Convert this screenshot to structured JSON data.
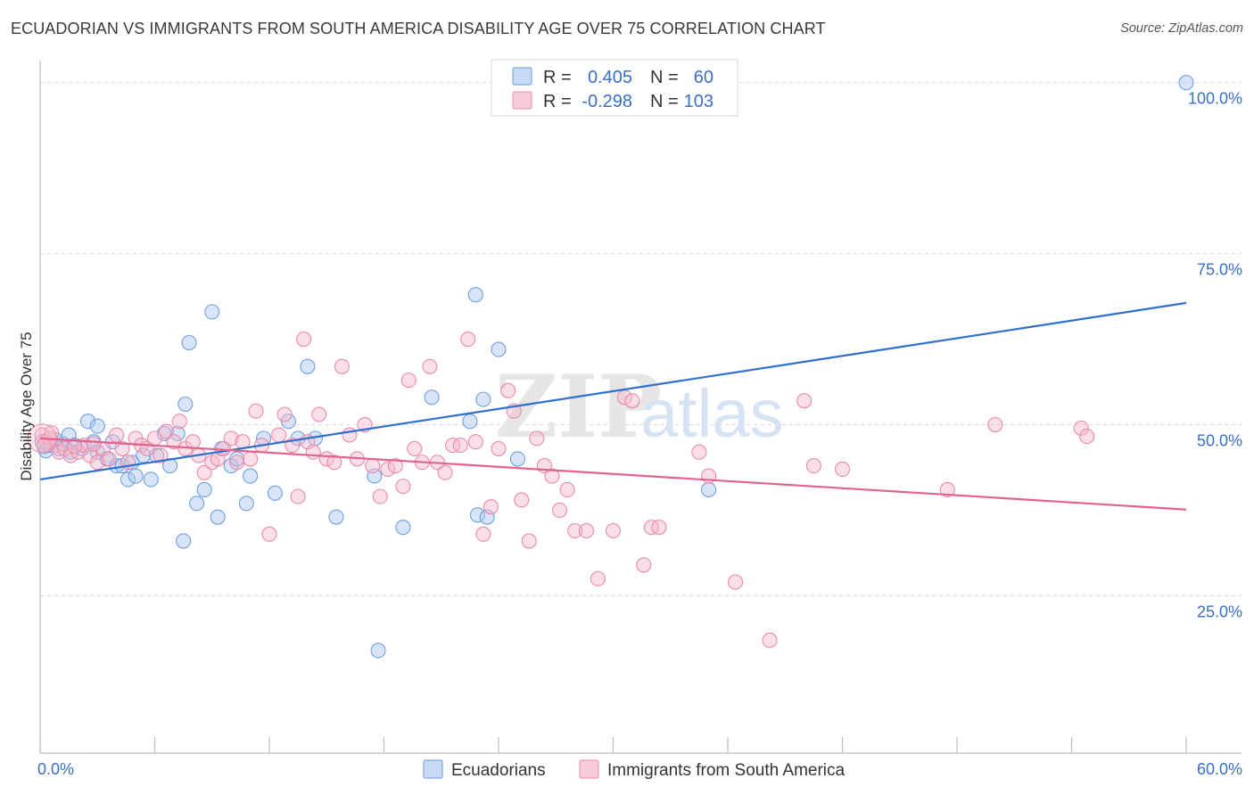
{
  "header": {
    "title": "ECUADORIAN VS IMMIGRANTS FROM SOUTH AMERICA DISABILITY AGE OVER 75 CORRELATION CHART",
    "source": "Source: ZipAtlas.com"
  },
  "watermark": {
    "part1": "ZIP",
    "part2": "atlas"
  },
  "chart_data": {
    "type": "scatter",
    "title": "ECUADORIAN VS IMMIGRANTS FROM SOUTH AMERICA DISABILITY AGE OVER 75 CORRELATION CHART",
    "xlabel": "",
    "ylabel": "Disability Age Over 75",
    "xlim": [
      0,
      60
    ],
    "ylim": [
      2,
      104
    ],
    "x_tick_labels": {
      "left": "0.0%",
      "right": "60.0%"
    },
    "y_ticks": [
      {
        "value": 25,
        "label": "25.0%"
      },
      {
        "value": 50,
        "label": "50.0%"
      },
      {
        "value": 75,
        "label": "75.0%"
      },
      {
        "value": 100,
        "label": "100.0%"
      }
    ],
    "grid": true,
    "legend_position": "top-center",
    "stats": [
      {
        "r_label": "R =",
        "r": "0.405",
        "n_label": "N =",
        "n": "60"
      },
      {
        "r_label": "R =",
        "r": "-0.298",
        "n_label": "N =",
        "n": "103"
      }
    ],
    "series": [
      {
        "name": "Ecuadorians",
        "color": "#a9c6ef",
        "stroke": "#6f9fe0",
        "trend_color": "#2f6fce",
        "trend": {
          "x0": 0,
          "y0": 42.0,
          "x1": 60,
          "y1": 67.8
        },
        "points": [
          [
            0.1,
            47.5
          ],
          [
            0.2,
            46.8
          ],
          [
            0.3,
            46.2
          ],
          [
            0.5,
            47.0
          ],
          [
            0.8,
            47.8
          ],
          [
            1.0,
            46.5
          ],
          [
            1.2,
            47.2
          ],
          [
            1.5,
            48.5
          ],
          [
            1.8,
            47.0
          ],
          [
            2.2,
            46.5
          ],
          [
            2.5,
            50.5
          ],
          [
            2.8,
            47.5
          ],
          [
            3.0,
            49.8
          ],
          [
            3.5,
            45.0
          ],
          [
            3.8,
            47.5
          ],
          [
            4.0,
            44.0
          ],
          [
            4.3,
            44.0
          ],
          [
            4.6,
            42.0
          ],
          [
            5.0,
            42.5
          ],
          [
            5.4,
            45.5
          ],
          [
            5.8,
            42.0
          ],
          [
            6.1,
            45.5
          ],
          [
            6.5,
            48.7
          ],
          [
            6.8,
            44.0
          ],
          [
            7.2,
            48.7
          ],
          [
            7.5,
            33.0
          ],
          [
            7.6,
            53.0
          ],
          [
            7.8,
            62.0
          ],
          [
            8.2,
            38.5
          ],
          [
            8.6,
            40.5
          ],
          [
            9.0,
            66.5
          ],
          [
            9.3,
            36.5
          ],
          [
            9.5,
            46.5
          ],
          [
            10.0,
            44.0
          ],
          [
            10.3,
            45.0
          ],
          [
            10.8,
            38.5
          ],
          [
            11.0,
            42.5
          ],
          [
            11.7,
            48.0
          ],
          [
            12.3,
            40.0
          ],
          [
            13.0,
            50.5
          ],
          [
            13.5,
            48.0
          ],
          [
            14.0,
            58.5
          ],
          [
            14.4,
            48.0
          ],
          [
            15.5,
            36.5
          ],
          [
            17.5,
            42.5
          ],
          [
            17.7,
            17.0
          ],
          [
            19.0,
            35.0
          ],
          [
            20.5,
            54.0
          ],
          [
            22.5,
            50.5
          ],
          [
            22.8,
            69.0
          ],
          [
            22.9,
            36.8
          ],
          [
            23.2,
            53.7
          ],
          [
            23.4,
            36.5
          ],
          [
            24.0,
            61.0
          ],
          [
            25.0,
            45.0
          ],
          [
            35.0,
            40.5
          ],
          [
            60.0,
            100.0
          ],
          [
            3.0,
            46.0
          ],
          [
            4.8,
            44.5
          ],
          [
            1.6,
            46.0
          ]
        ]
      },
      {
        "name": "Immigrants from South America",
        "color": "#f5b9cc",
        "stroke": "#ea8aa8",
        "trend_color": "#e2638f",
        "trend": {
          "x0": 0,
          "y0": 48.0,
          "x1": 60,
          "y1": 37.6
        },
        "points": [
          [
            0.1,
            48.5
          ],
          [
            0.3,
            47.5
          ],
          [
            0.5,
            48.0
          ],
          [
            0.8,
            47.0
          ],
          [
            1.0,
            46.0
          ],
          [
            1.3,
            46.5
          ],
          [
            1.6,
            45.5
          ],
          [
            2.0,
            46.0
          ],
          [
            2.3,
            47.0
          ],
          [
            2.6,
            45.5
          ],
          [
            3.0,
            44.5
          ],
          [
            3.3,
            46.5
          ],
          [
            3.6,
            45.0
          ],
          [
            4.0,
            48.5
          ],
          [
            4.3,
            46.5
          ],
          [
            4.6,
            44.5
          ],
          [
            5.0,
            48.0
          ],
          [
            5.3,
            47.0
          ],
          [
            5.6,
            46.5
          ],
          [
            6.0,
            48.0
          ],
          [
            6.3,
            45.5
          ],
          [
            6.6,
            49.0
          ],
          [
            7.0,
            47.5
          ],
          [
            7.3,
            50.5
          ],
          [
            7.6,
            46.5
          ],
          [
            8.0,
            47.5
          ],
          [
            8.3,
            45.5
          ],
          [
            8.6,
            43.0
          ],
          [
            9.0,
            44.5
          ],
          [
            9.3,
            45.0
          ],
          [
            9.6,
            46.5
          ],
          [
            10.0,
            48.0
          ],
          [
            10.3,
            44.5
          ],
          [
            10.6,
            47.5
          ],
          [
            11.0,
            45.0
          ],
          [
            11.3,
            52.0
          ],
          [
            11.6,
            47.0
          ],
          [
            12.0,
            34.0
          ],
          [
            12.5,
            48.5
          ],
          [
            12.8,
            51.5
          ],
          [
            13.2,
            47.0
          ],
          [
            13.5,
            39.5
          ],
          [
            13.8,
            62.5
          ],
          [
            14.0,
            47.5
          ],
          [
            14.3,
            46.0
          ],
          [
            14.6,
            51.5
          ],
          [
            15.0,
            45.0
          ],
          [
            15.4,
            44.5
          ],
          [
            15.8,
            58.5
          ],
          [
            16.2,
            48.5
          ],
          [
            16.6,
            45.0
          ],
          [
            17.0,
            50.0
          ],
          [
            17.4,
            44.0
          ],
          [
            17.8,
            39.5
          ],
          [
            18.2,
            43.5
          ],
          [
            18.6,
            44.0
          ],
          [
            19.0,
            41.0
          ],
          [
            19.3,
            56.5
          ],
          [
            19.6,
            46.5
          ],
          [
            20.0,
            44.5
          ],
          [
            20.4,
            58.5
          ],
          [
            20.8,
            44.5
          ],
          [
            21.2,
            43.0
          ],
          [
            21.6,
            47.0
          ],
          [
            22.0,
            47.0
          ],
          [
            22.4,
            62.5
          ],
          [
            22.8,
            47.5
          ],
          [
            23.2,
            34.0
          ],
          [
            23.6,
            38.0
          ],
          [
            24.0,
            46.5
          ],
          [
            24.5,
            55.0
          ],
          [
            24.8,
            52.0
          ],
          [
            25.2,
            39.0
          ],
          [
            25.6,
            33.0
          ],
          [
            26.0,
            48.0
          ],
          [
            26.4,
            44.0
          ],
          [
            26.8,
            42.5
          ],
          [
            27.2,
            37.5
          ],
          [
            27.6,
            40.5
          ],
          [
            28.0,
            34.5
          ],
          [
            28.6,
            34.5
          ],
          [
            29.2,
            27.5
          ],
          [
            30.0,
            34.5
          ],
          [
            30.6,
            54.0
          ],
          [
            31.0,
            53.5
          ],
          [
            31.6,
            29.5
          ],
          [
            32.0,
            35.0
          ],
          [
            32.4,
            35.0
          ],
          [
            34.5,
            46.0
          ],
          [
            35.0,
            42.5
          ],
          [
            36.4,
            27.0
          ],
          [
            38.2,
            18.5
          ],
          [
            40.0,
            53.5
          ],
          [
            40.5,
            44.0
          ],
          [
            42.0,
            43.5
          ],
          [
            47.5,
            40.5
          ],
          [
            50.0,
            50.0
          ],
          [
            54.5,
            49.5
          ],
          [
            54.8,
            48.3
          ],
          [
            0.2,
            47.0
          ],
          [
            0.6,
            48.8
          ],
          [
            1.8,
            46.8
          ],
          [
            2.8,
            47.2
          ]
        ]
      }
    ]
  },
  "bottom_legend": {
    "items": [
      {
        "label": "Ecuadorians",
        "color": "#a9c6ef",
        "stroke": "#6f9fe0"
      },
      {
        "label": "Immigrants from South America",
        "color": "#f5b9cc",
        "stroke": "#ea8aa8"
      }
    ]
  },
  "colors": {
    "blue_text": "#3b6fc4",
    "grid": "#d9d9d9",
    "axis": "#bdbdbd"
  }
}
